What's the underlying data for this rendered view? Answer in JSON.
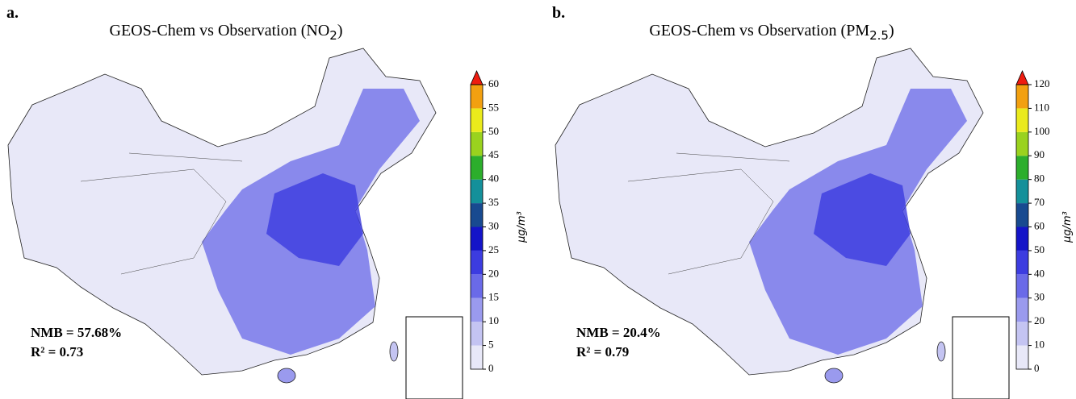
{
  "panels": [
    {
      "label": "a.",
      "title": {
        "text": "GEOS-Chem vs Observation (NO",
        "sub": "2",
        "end": ")"
      },
      "colorbar": {
        "ticks": [
          0,
          5,
          10,
          15,
          20,
          25,
          30,
          35,
          40,
          45,
          50,
          55,
          60
        ],
        "colors": [
          "#e8e8f8",
          "#c4c4f2",
          "#9a9aee",
          "#6a6ae8",
          "#3c3ce0",
          "#1414c8",
          "#184a90",
          "#14909a",
          "#2cae2c",
          "#9ad21e",
          "#eaea1c",
          "#f2a010"
        ],
        "extend_color": "#ee1c10",
        "unit": "μg/m³"
      },
      "stats": [
        "NMB = 57.68%",
        "R² = 0.73"
      ]
    },
    {
      "label": "b.",
      "title": {
        "text": "GEOS-Chem vs Observation (PM",
        "sub": "2.5",
        "end": ")"
      },
      "colorbar": {
        "ticks": [
          0,
          10,
          20,
          30,
          40,
          50,
          60,
          70,
          80,
          90,
          100,
          110,
          120
        ],
        "colors": [
          "#e8e8f8",
          "#c4c4f2",
          "#9a9aee",
          "#6a6ae8",
          "#3c3ce0",
          "#1414c8",
          "#184a90",
          "#14909a",
          "#2cae2c",
          "#9ad21e",
          "#eaea1c",
          "#f2a010"
        ],
        "extend_color": "#ee1c10",
        "unit": "μg/m³"
      },
      "stats": [
        "NMB = 20.4%",
        "R² = 0.79"
      ]
    }
  ]
}
